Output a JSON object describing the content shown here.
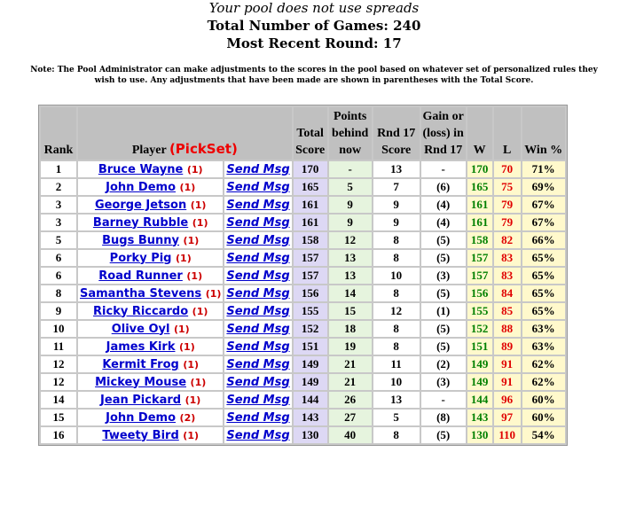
{
  "header": {
    "spreads_note": "Your pool does not use spreads",
    "total_games": "Total Number of Games:  240",
    "recent_round": "Most Recent Round:  17"
  },
  "note": "Note: The Pool Administrator can make adjustments to the scores in the pool based on whatever set of personalized rules they wish to use.  Any adjustments that have been made are shown in parentheses with the Total Score.",
  "table": {
    "headers": {
      "rank": "Rank",
      "player": "Player",
      "pickset": "(PickSet)",
      "total": "Total Score",
      "points_behind": "Points behind now",
      "rnd_score": "Rnd 17 Score",
      "gain": "Gain or (loss) in Rnd 17",
      "w": "W",
      "l": "L",
      "win_pct": "Win %"
    },
    "send_label": "Send Msg",
    "rows": [
      {
        "rank": "1",
        "player": "Bruce Wayne",
        "pickset": "(1)",
        "total": "170",
        "behind": "-",
        "rnd": "13",
        "gain": "-",
        "w": "170",
        "l": "70",
        "pct": "71%"
      },
      {
        "rank": "2",
        "player": "John Demo",
        "pickset": "(1)",
        "total": "165",
        "behind": "5",
        "rnd": "7",
        "gain": "(6)",
        "w": "165",
        "l": "75",
        "pct": "69%"
      },
      {
        "rank": "3",
        "player": "George Jetson",
        "pickset": "(1)",
        "total": "161",
        "behind": "9",
        "rnd": "9",
        "gain": "(4)",
        "w": "161",
        "l": "79",
        "pct": "67%"
      },
      {
        "rank": "3",
        "player": "Barney Rubble",
        "pickset": "(1)",
        "total": "161",
        "behind": "9",
        "rnd": "9",
        "gain": "(4)",
        "w": "161",
        "l": "79",
        "pct": "67%"
      },
      {
        "rank": "5",
        "player": "Bugs Bunny",
        "pickset": "(1)",
        "total": "158",
        "behind": "12",
        "rnd": "8",
        "gain": "(5)",
        "w": "158",
        "l": "82",
        "pct": "66%"
      },
      {
        "rank": "6",
        "player": "Porky Pig",
        "pickset": "(1)",
        "total": "157",
        "behind": "13",
        "rnd": "8",
        "gain": "(5)",
        "w": "157",
        "l": "83",
        "pct": "65%"
      },
      {
        "rank": "6",
        "player": "Road Runner",
        "pickset": "(1)",
        "total": "157",
        "behind": "13",
        "rnd": "10",
        "gain": "(3)",
        "w": "157",
        "l": "83",
        "pct": "65%"
      },
      {
        "rank": "8",
        "player": "Samantha Stevens",
        "pickset": "(1)",
        "total": "156",
        "behind": "14",
        "rnd": "8",
        "gain": "(5)",
        "w": "156",
        "l": "84",
        "pct": "65%"
      },
      {
        "rank": "9",
        "player": "Ricky Riccardo",
        "pickset": "(1)",
        "total": "155",
        "behind": "15",
        "rnd": "12",
        "gain": "(1)",
        "w": "155",
        "l": "85",
        "pct": "65%"
      },
      {
        "rank": "10",
        "player": "Olive Oyl",
        "pickset": "(1)",
        "total": "152",
        "behind": "18",
        "rnd": "8",
        "gain": "(5)",
        "w": "152",
        "l": "88",
        "pct": "63%"
      },
      {
        "rank": "11",
        "player": "James Kirk",
        "pickset": "(1)",
        "total": "151",
        "behind": "19",
        "rnd": "8",
        "gain": "(5)",
        "w": "151",
        "l": "89",
        "pct": "63%"
      },
      {
        "rank": "12",
        "player": "Kermit Frog",
        "pickset": "(1)",
        "total": "149",
        "behind": "21",
        "rnd": "11",
        "gain": "(2)",
        "w": "149",
        "l": "91",
        "pct": "62%"
      },
      {
        "rank": "12",
        "player": "Mickey Mouse",
        "pickset": "(1)",
        "total": "149",
        "behind": "21",
        "rnd": "10",
        "gain": "(3)",
        "w": "149",
        "l": "91",
        "pct": "62%"
      },
      {
        "rank": "14",
        "player": "Jean Pickard",
        "pickset": "(1)",
        "total": "144",
        "behind": "26",
        "rnd": "13",
        "gain": "-",
        "w": "144",
        "l": "96",
        "pct": "60%"
      },
      {
        "rank": "15",
        "player": "John Demo",
        "pickset": "(2)",
        "total": "143",
        "behind": "27",
        "rnd": "5",
        "gain": "(8)",
        "w": "143",
        "l": "97",
        "pct": "60%"
      },
      {
        "rank": "16",
        "player": "Tweety Bird",
        "pickset": "(1)",
        "total": "130",
        "behind": "40",
        "rnd": "8",
        "gain": "(5)",
        "w": "130",
        "l": "110",
        "pct": "54%"
      }
    ]
  },
  "colors": {
    "link": "#0000cc",
    "pickset_red": "#cc0000",
    "win_green": "#008000",
    "loss_red": "#e00000",
    "total_bg": "#ddd8f4",
    "behind_bg": "#e6f4de",
    "wl_bg": "#fff9cc",
    "header_bg": "#c0c0c0"
  }
}
